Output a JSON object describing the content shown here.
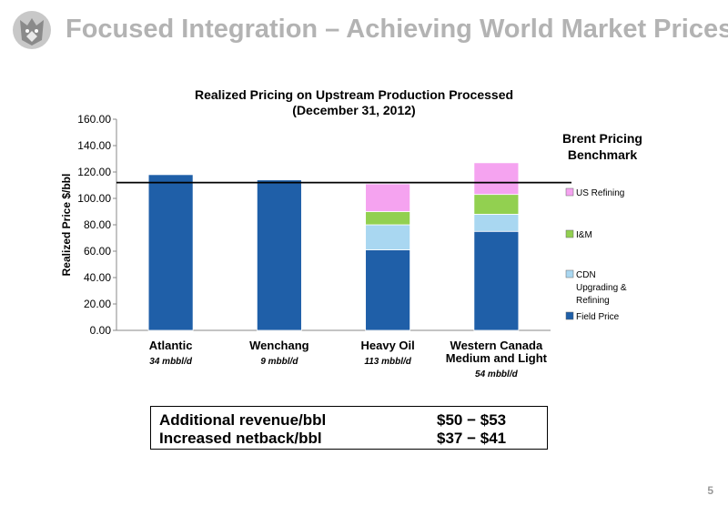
{
  "slide": {
    "title": "Focused Integration – Achieving World Market Prices",
    "logo_icon": "husky-dog-logo-icon",
    "page_number": "5"
  },
  "chart_data": {
    "type": "bar",
    "stacked": true,
    "title": "Realized Pricing on Upstream Production Processed",
    "subtitle": "(December 31, 2012)",
    "ylabel": "Realized Price $/bbl",
    "ylim": [
      0,
      160
    ],
    "yticks": [
      "0.00",
      "20.00",
      "40.00",
      "60.00",
      "80.00",
      "100.00",
      "120.00",
      "140.00",
      "160.00"
    ],
    "categories": [
      "Atlantic",
      "Wenchang",
      "Heavy Oil",
      "Western Canada Medium and Light"
    ],
    "category_lines": [
      [
        "Atlantic"
      ],
      [
        "Wenchang"
      ],
      [
        "Heavy Oil"
      ],
      [
        "Western Canada",
        "Medium and Light"
      ]
    ],
    "volumes": [
      "34 mbbl/d",
      "9 mbbl/d",
      "113 mbbl/d",
      "54 mbbl/d"
    ],
    "series": [
      {
        "name": "Field Price",
        "color": "#1f5fa8",
        "values": [
          118,
          114,
          61,
          75
        ]
      },
      {
        "name": "CDN Upgrading & Refining",
        "color": "#a9d7f1",
        "values": [
          0,
          0,
          19,
          13
        ]
      },
      {
        "name": "I&M",
        "color": "#92d050",
        "values": [
          0,
          0,
          10,
          15
        ]
      },
      {
        "name": "US Refining",
        "color": "#f5a3f0",
        "values": [
          0,
          0,
          21,
          24
        ]
      }
    ],
    "legend_position": "right",
    "legend_lines": [
      [
        "US Refining"
      ],
      [
        "I&M"
      ],
      [
        "CDN",
        "Upgrading &",
        "Refining"
      ],
      [
        "Field Price"
      ]
    ],
    "benchmark": {
      "value": 112,
      "label_lines": [
        "Brent Pricing",
        "Benchmark"
      ]
    },
    "grid": false
  },
  "summary": {
    "rows": [
      {
        "label": "Additional revenue/bbl",
        "value": "$50 − $53"
      },
      {
        "label": "Increased netback/bbl",
        "value": "$37 − $41"
      }
    ]
  }
}
